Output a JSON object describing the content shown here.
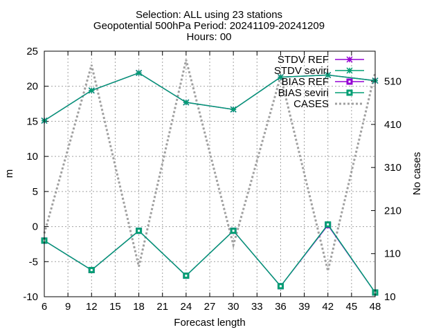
{
  "chart_data": {
    "type": "line",
    "title_lines": [
      "Selection: ALL using    23 stations",
      "Geopotential 500hPa   Period: 20241109-20241209",
      "Hours: 00"
    ],
    "xlabel": "Forecast length",
    "ylabel": "m",
    "y2label": "No cases",
    "x": [
      6,
      12,
      18,
      24,
      30,
      36,
      42,
      48
    ],
    "xlim": [
      6,
      48
    ],
    "xticks": [
      6,
      9,
      12,
      15,
      18,
      21,
      24,
      27,
      30,
      33,
      36,
      39,
      42,
      45,
      48
    ],
    "ylim": [
      -10,
      25
    ],
    "yticks": [
      -10,
      -5,
      0,
      5,
      10,
      15,
      20,
      25
    ],
    "y2lim": [
      10,
      580
    ],
    "y2ticks": [
      10,
      110,
      210,
      310,
      410,
      510
    ],
    "grid": true,
    "legend_position": "top-right",
    "series": [
      {
        "name": "STDV REF",
        "axis": "y",
        "color": "#9400d3",
        "marker": "cross",
        "values": [
          15.1,
          19.4,
          21.9,
          17.7,
          16.7,
          21.3,
          21.6,
          20.8
        ]
      },
      {
        "name": "STDV seviri",
        "axis": "y",
        "color": "#009e73",
        "marker": "cross",
        "values": [
          15.1,
          19.4,
          21.9,
          17.7,
          16.7,
          21.3,
          21.6,
          20.8
        ]
      },
      {
        "name": "BIAS REF",
        "axis": "y",
        "color": "#9400d3",
        "marker": "square",
        "values": [
          -2.0,
          -6.2,
          -0.6,
          -7.0,
          -0.6,
          -8.5,
          0.2,
          -9.4
        ]
      },
      {
        "name": "BIAS seviri",
        "axis": "y",
        "color": "#009e73",
        "marker": "square",
        "values": [
          -2.0,
          -6.2,
          -0.6,
          -7.0,
          -0.6,
          -8.5,
          0.3,
          -9.4
        ]
      },
      {
        "name": "CASES",
        "axis": "y2",
        "color": "#a0a0a0",
        "marker": "none",
        "dashed": true,
        "values": [
          157,
          548,
          80,
          560,
          130,
          522,
          70,
          531
        ]
      }
    ]
  }
}
